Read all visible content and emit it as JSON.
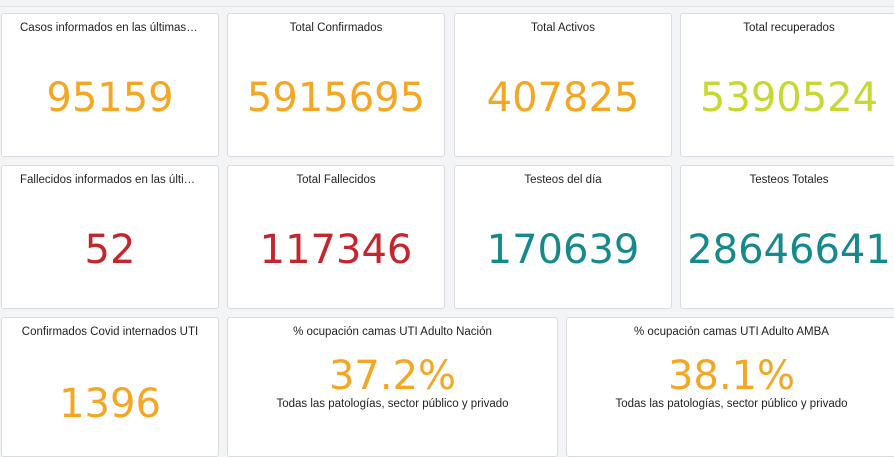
{
  "colors": {
    "orange": "#f5a623",
    "lime": "#c6d831",
    "red": "#c4262e",
    "teal": "#168a8a"
  },
  "cards": {
    "casos_24h": {
      "title": "Casos informados en las últimas 2...",
      "value": "95159"
    },
    "total_confirmados": {
      "title": "Total Confirmados",
      "value": "5915695"
    },
    "total_activos": {
      "title": "Total Activos",
      "value": "407825"
    },
    "total_recuperados": {
      "title": "Total recuperados",
      "value": "5390524"
    },
    "fallecidos_24h": {
      "title": "Fallecidos informados en las últim...",
      "value": "52"
    },
    "total_fallecidos": {
      "title": "Total Fallecidos",
      "value": "117346"
    },
    "testeos_dia": {
      "title": "Testeos del día",
      "value": "170639"
    },
    "testeos_totales": {
      "title": "Testeos Totales",
      "value": "28646641"
    },
    "internados_uti": {
      "title": "Confirmados Covid internados UTI",
      "value": "1396"
    },
    "ocupacion_nacion": {
      "title": "% ocupación camas UTI Adulto Nación",
      "value": "37.2%",
      "subtitle": "Todas las patologías, sector público y privado"
    },
    "ocupacion_amba": {
      "title": "% ocupación camas UTI Adulto AMBA",
      "value": "38.1%",
      "subtitle": "Todas las patologías, sector público y privado"
    }
  }
}
